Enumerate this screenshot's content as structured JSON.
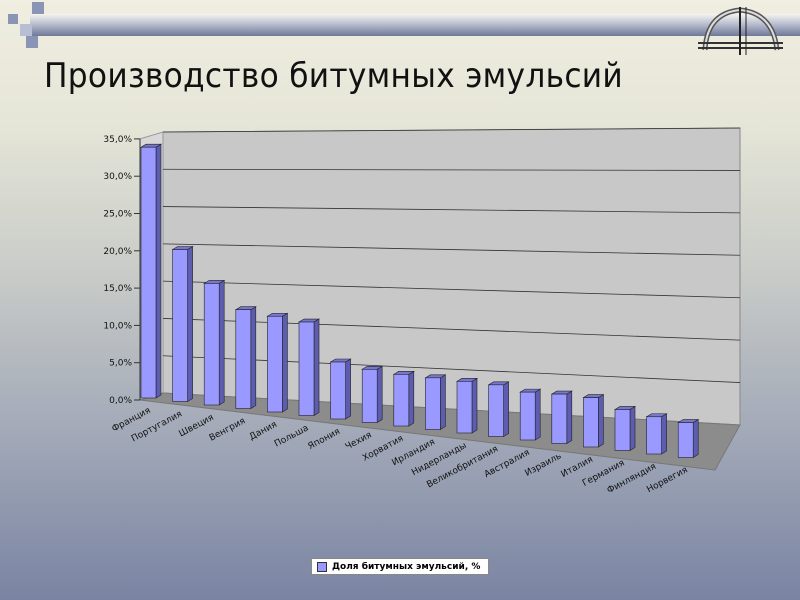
{
  "slide": {
    "title": "Производство битумных эмульсий",
    "logo": "arch-bridge-logo"
  },
  "colors": {
    "bar_front": "#9999ff",
    "bar_side": "#5c5cb0",
    "wall": "#c8c8c8",
    "floor": "#8c8c8c"
  },
  "chart_data": {
    "type": "bar",
    "style": "3d-column",
    "categories": [
      "Франция",
      "Португалия",
      "Швеция",
      "Венгрия",
      "Дания",
      "Польша",
      "Япония",
      "Чехия",
      "Хорватия",
      "Ирландия",
      "Нидерланды",
      "Великобритания",
      "Австралия",
      "Израиль",
      "Италия",
      "Германия",
      "Финляндия",
      "Норвегия"
    ],
    "series": [
      {
        "name": "Доля битумных эмульсий, %",
        "values": [
          33,
          20,
          16,
          13,
          12.6,
          12.3,
          7.5,
          7,
          6.8,
          6.8,
          6.8,
          6.8,
          6.3,
          6.5,
          6.5,
          5.4,
          4.9,
          4.6
        ]
      }
    ],
    "y_ticks": [
      "0,0%",
      "5,0%",
      "10,0%",
      "15,0%",
      "20,0%",
      "25,0%",
      "30,0%",
      "35,0%"
    ],
    "ylim": [
      0,
      35
    ],
    "grid": true,
    "legend": "bottom"
  }
}
